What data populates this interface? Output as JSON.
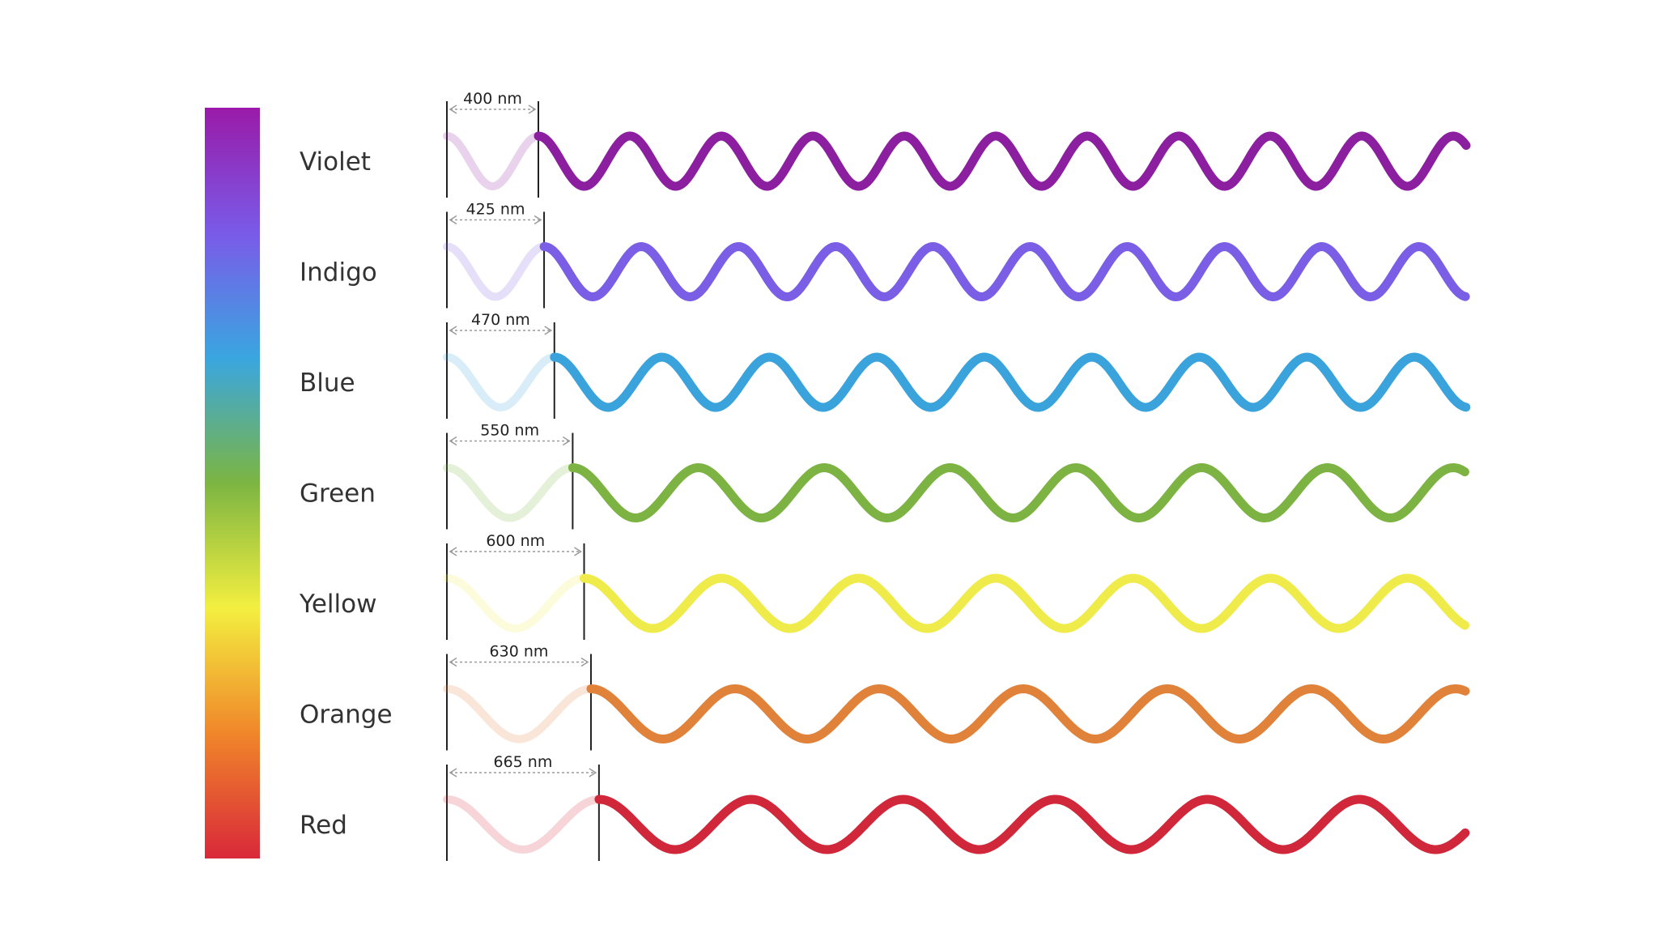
{
  "spectrum": {
    "gradient_stops": [
      "#9a1aa8",
      "#7a5ae8",
      "#3aa6e0",
      "#7cb542",
      "#f3ef40",
      "#f0862a",
      "#d9283a"
    ]
  },
  "bands": [
    {
      "name": "Violet",
      "wavelength_nm": 400,
      "wavelength_label": "400 nm",
      "color": "#8b1fa0"
    },
    {
      "name": "Indigo",
      "wavelength_nm": 425,
      "wavelength_label": "425 nm",
      "color": "#7b5ee6"
    },
    {
      "name": "Blue",
      "wavelength_nm": 470,
      "wavelength_label": "470 nm",
      "color": "#3aa3dc"
    },
    {
      "name": "Green",
      "wavelength_nm": 550,
      "wavelength_label": "550 nm",
      "color": "#7cb342"
    },
    {
      "name": "Yellow",
      "wavelength_nm": 600,
      "wavelength_label": "600 nm",
      "color": "#efeb4a"
    },
    {
      "name": "Orange",
      "wavelength_nm": 630,
      "wavelength_label": "630 nm",
      "color": "#e0823a"
    },
    {
      "name": "Red",
      "wavelength_nm": 665,
      "wavelength_label": "665 nm",
      "color": "#d0283a"
    }
  ]
}
